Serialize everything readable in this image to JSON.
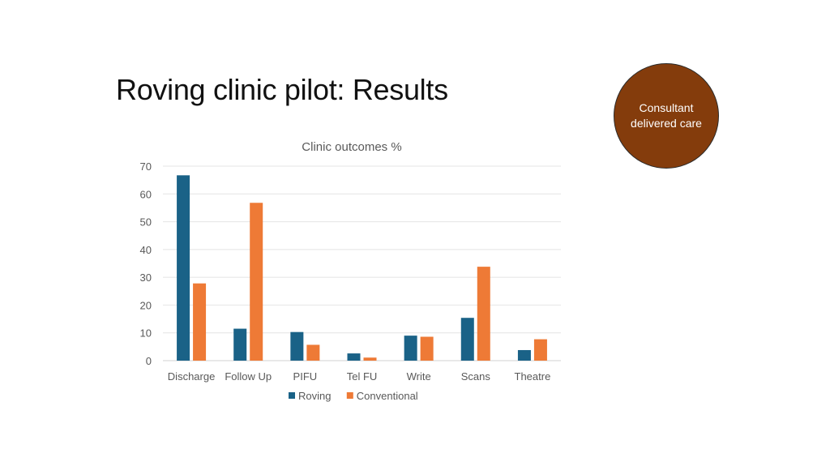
{
  "slide": {
    "title": "Roving clinic pilot: Results",
    "badge_text": "Consultant delivered care",
    "badge_color": "#843c0c"
  },
  "chart_data": {
    "type": "bar",
    "title": "Clinic outcomes %",
    "categories": [
      "Discharge",
      "Follow Up",
      "PIFU",
      "Tel FU",
      "Write",
      "Scans",
      "Theatre"
    ],
    "series": [
      {
        "name": "Roving",
        "color": "#1a6287",
        "values": [
          66.7,
          11.5,
          10.3,
          2.6,
          9.0,
          15.4,
          3.8
        ]
      },
      {
        "name": "Conventional",
        "color": "#ee7a36",
        "values": [
          27.8,
          56.8,
          5.7,
          1.1,
          8.6,
          33.8,
          7.7
        ]
      }
    ],
    "ylim": [
      0,
      70
    ],
    "yticks": [
      0,
      10,
      20,
      30,
      40,
      50,
      60,
      70
    ],
    "grid": true,
    "legend": "bottom-center",
    "xlabel": "",
    "ylabel": ""
  }
}
